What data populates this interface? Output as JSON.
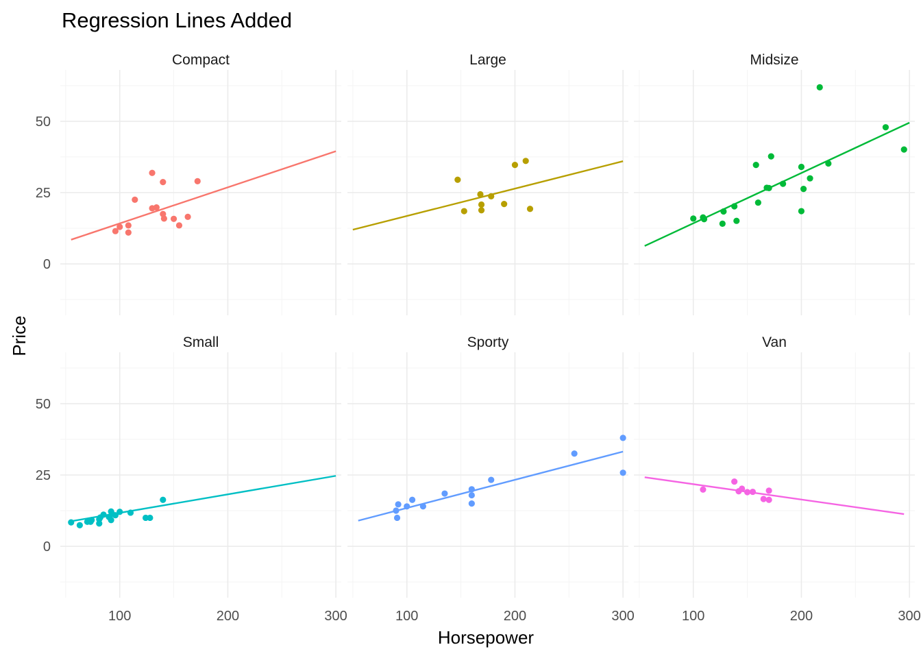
{
  "chart_data": {
    "type": "scatter",
    "title": "Regression Lines Added",
    "xlabel": "Horsepower",
    "ylabel": "Price",
    "xlim": [
      45,
      305
    ],
    "ylim": [
      -18,
      68
    ],
    "x_ticks": [
      100,
      200,
      300
    ],
    "y_ticks": [
      0,
      25,
      50
    ],
    "grid": true,
    "legend": "none",
    "layout": {
      "rows": 2,
      "cols": 3
    },
    "panels": [
      {
        "name": "Compact",
        "color": "#F8766D",
        "line": [
          [
            55,
            8.5
          ],
          [
            300,
            39.5
          ]
        ],
        "points": [
          [
            96,
            11.5
          ],
          [
            100,
            13
          ],
          [
            108,
            13.5
          ],
          [
            108,
            11
          ],
          [
            114,
            22.5
          ],
          [
            130,
            19.5
          ],
          [
            130,
            31.9
          ],
          [
            134,
            19.8
          ],
          [
            140,
            28.7
          ],
          [
            140,
            17.5
          ],
          [
            141,
            15.9
          ],
          [
            150,
            15.8
          ],
          [
            155,
            13.5
          ],
          [
            163,
            16.5
          ],
          [
            172,
            29
          ]
        ]
      },
      {
        "name": "Large",
        "color": "#B79F00",
        "line": [
          [
            50,
            12
          ],
          [
            300,
            36
          ]
        ],
        "points": [
          [
            147,
            29.5
          ],
          [
            153,
            18.5
          ],
          [
            168,
            24.4
          ],
          [
            169,
            20.8
          ],
          [
            169,
            18.8
          ],
          [
            178,
            23.7
          ],
          [
            190,
            21
          ],
          [
            200,
            34.7
          ],
          [
            210,
            36.1
          ],
          [
            214,
            19.3
          ]
        ]
      },
      {
        "name": "Midsize",
        "color": "#00BA38",
        "line": [
          [
            55,
            6.3
          ],
          [
            300,
            49.5
          ]
        ],
        "points": [
          [
            100,
            15.9
          ],
          [
            109,
            16.3
          ],
          [
            110,
            15.7
          ],
          [
            127,
            14.1
          ],
          [
            128,
            18.4
          ],
          [
            138,
            20.2
          ],
          [
            140,
            15.1
          ],
          [
            158,
            34.7
          ],
          [
            160,
            21.5
          ],
          [
            168,
            26.7
          ],
          [
            170,
            26.6
          ],
          [
            172,
            37.7
          ],
          [
            183,
            28.1
          ],
          [
            200,
            34
          ],
          [
            200,
            18.5
          ],
          [
            202,
            26.3
          ],
          [
            208,
            30
          ],
          [
            217,
            61.9
          ],
          [
            225,
            35.2
          ],
          [
            278,
            47.9
          ],
          [
            295,
            40.1
          ]
        ]
      },
      {
        "name": "Small",
        "color": "#00BFC4",
        "line": [
          [
            55,
            8.8
          ],
          [
            300,
            24.7
          ]
        ],
        "points": [
          [
            55,
            8.4
          ],
          [
            63,
            7.4
          ],
          [
            70,
            8.6
          ],
          [
            73,
            8.6
          ],
          [
            74,
            9.2
          ],
          [
            81,
            8
          ],
          [
            81,
            9.5
          ],
          [
            82,
            10.1
          ],
          [
            85,
            11.1
          ],
          [
            90,
            10.3
          ],
          [
            92,
            12.2
          ],
          [
            92,
            9.2
          ],
          [
            93,
            11.3
          ],
          [
            96,
            10.9
          ],
          [
            100,
            12.1
          ],
          [
            110,
            11.8
          ],
          [
            124,
            10
          ],
          [
            128,
            10
          ],
          [
            140,
            16.3
          ]
        ]
      },
      {
        "name": "Sporty",
        "color": "#619CFF",
        "line": [
          [
            55,
            9
          ],
          [
            300,
            33.2
          ]
        ],
        "points": [
          [
            90,
            12.5
          ],
          [
            91,
            10
          ],
          [
            92,
            14.7
          ],
          [
            100,
            14
          ],
          [
            105,
            16.3
          ],
          [
            115,
            14
          ],
          [
            135,
            18.5
          ],
          [
            160,
            20
          ],
          [
            160,
            17.9
          ],
          [
            160,
            15
          ],
          [
            178,
            23.3
          ],
          [
            255,
            32.5
          ],
          [
            300,
            38
          ],
          [
            300,
            25.8
          ]
        ]
      },
      {
        "name": "Van",
        "color": "#F564E3",
        "line": [
          [
            55,
            24.2
          ],
          [
            295,
            11.3
          ]
        ],
        "points": [
          [
            109,
            19.9
          ],
          [
            138,
            22.7
          ],
          [
            142,
            19.3
          ],
          [
            145,
            20.2
          ],
          [
            150,
            19
          ],
          [
            155,
            19.1
          ],
          [
            165,
            16.6
          ],
          [
            170,
            16.3
          ],
          [
            170,
            19.5
          ]
        ]
      }
    ]
  }
}
